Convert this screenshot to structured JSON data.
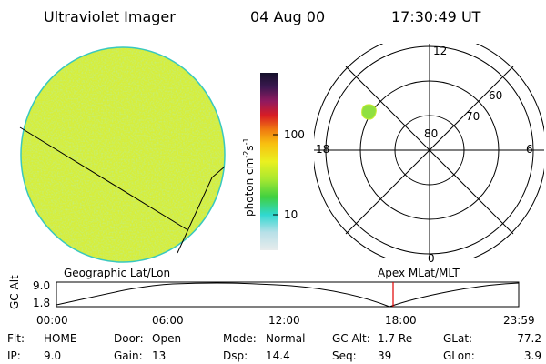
{
  "header": {
    "instrument": "Ultraviolet Imager",
    "date": "04 Aug 00",
    "time": "17:30:49 UT"
  },
  "colorbar": {
    "label": [
      "photon cm",
      "-2",
      "s",
      "-1"
    ],
    "ticks": [
      "100",
      "10"
    ]
  },
  "polar": {
    "mlt_labels": [
      "12",
      "6",
      "0",
      "18"
    ],
    "lat_labels": [
      "60",
      "70",
      "80"
    ]
  },
  "orbit": {
    "left_label": "Geographic Lat/Lon",
    "right_label": "Apex MLat/MLT",
    "y_label": "GC Alt",
    "y_ticks": [
      "9.0",
      "1.8"
    ],
    "x_ticks": [
      "00:00",
      "06:00",
      "12:00",
      "18:00",
      "23:59"
    ]
  },
  "status": {
    "rows": [
      [
        [
          "Flt:",
          "HOME"
        ],
        [
          "Door:",
          "Open"
        ],
        [
          "Mode:",
          "Normal"
        ],
        [
          "GC Alt:",
          "1.7 Re"
        ],
        [
          "GLat:",
          "-77.2"
        ]
      ],
      [
        [
          "IP:",
          "9.0"
        ],
        [
          "Gain:",
          "13"
        ],
        [
          "Dsp:",
          "14.4"
        ],
        [
          "Seq:",
          "39"
        ],
        [
          "GLon:",
          "3.9"
        ]
      ]
    ]
  }
}
